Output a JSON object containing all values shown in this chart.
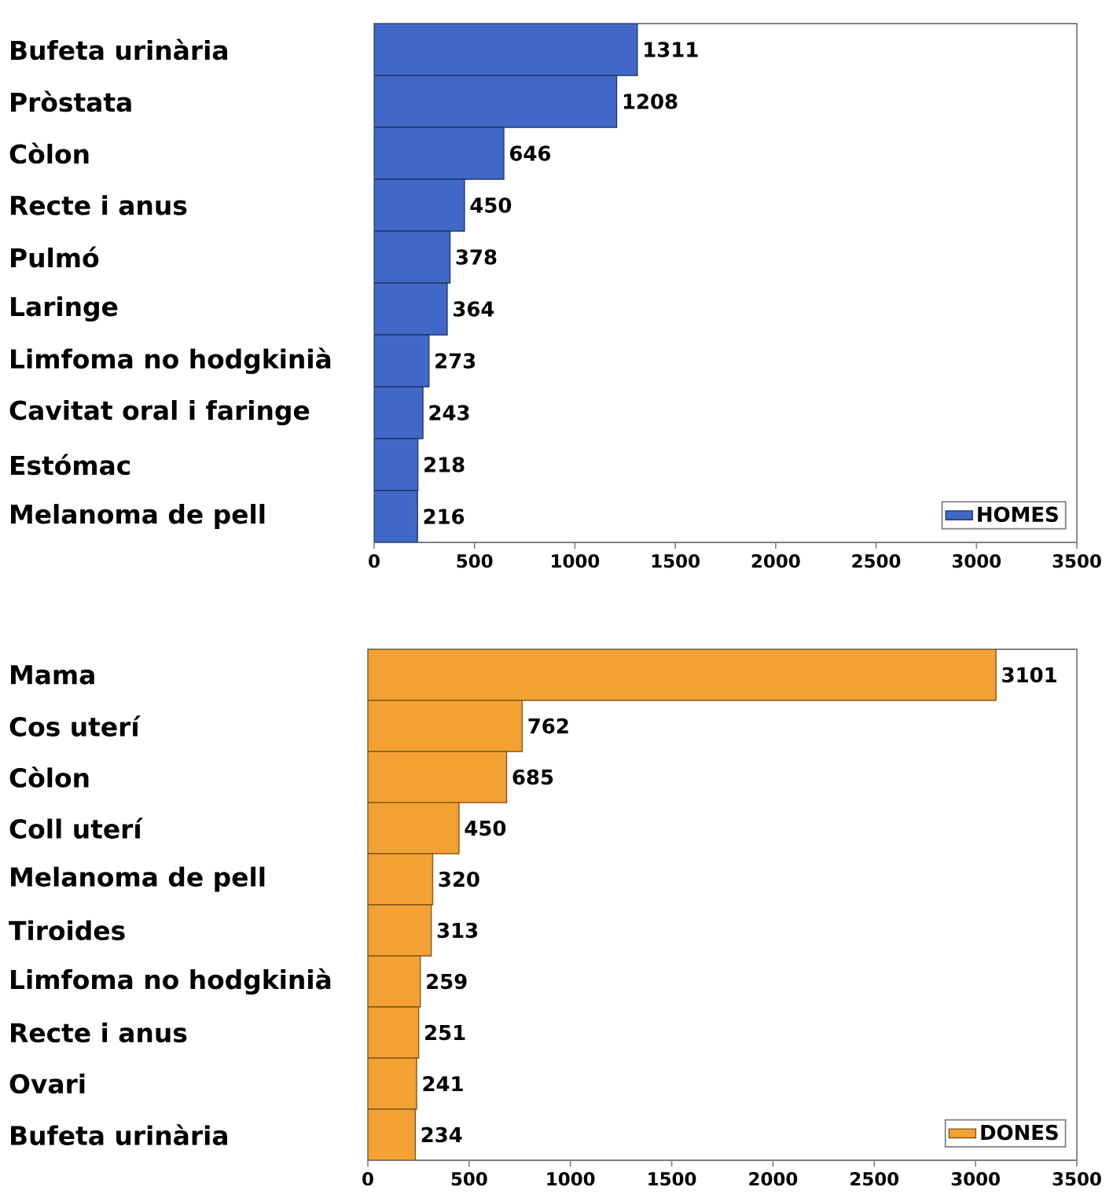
{
  "chart_data": [
    {
      "type": "bar",
      "orientation": "horizontal",
      "categories": [
        "Bufeta urinària",
        "Pròstata",
        "Còlon",
        "Recte i anus",
        "Pulmó",
        "Laringe",
        "Limfoma no hodgkinià",
        "Cavitat oral i faringe",
        "Estómac",
        "Melanoma de pell"
      ],
      "series": [
        {
          "name": "HOMES",
          "color": "#4068c6",
          "values": [
            1311,
            1208,
            646,
            450,
            378,
            364,
            273,
            243,
            218,
            216
          ]
        }
      ],
      "xlim": [
        0,
        3500
      ],
      "xticks": [
        0,
        500,
        1000,
        1500,
        2000,
        2500,
        3000,
        3500
      ],
      "data_labels": true,
      "legend": "bottom right"
    },
    {
      "type": "bar",
      "orientation": "horizontal",
      "categories": [
        "Mama",
        "Cos uterí",
        "Còlon",
        "Coll uterí",
        "Melanoma de pell",
        "Tiroides",
        "Limfoma no hodgkinià",
        "Recte i anus",
        "Ovari",
        "Bufeta urinària"
      ],
      "series": [
        {
          "name": "DONES",
          "color": "#f4a133",
          "values": [
            3101,
            762,
            685,
            450,
            320,
            313,
            259,
            251,
            241,
            234
          ]
        }
      ],
      "xlim": [
        0,
        3500
      ],
      "xticks": [
        0,
        500,
        1000,
        1500,
        2000,
        2500,
        3000,
        3500
      ],
      "data_labels": true,
      "legend": "bottom right"
    }
  ]
}
